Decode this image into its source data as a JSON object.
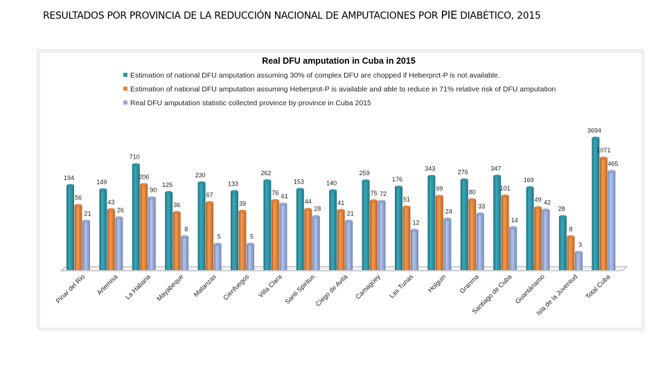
{
  "slide": {
    "title_part1": "RESULTADOS POR PROVINCIA DE LA REDUCCIÓN NACIONAL DE AMPUTACIONES POR ",
    "title_part2": "PIE",
    "title_part3": " DIABÉTICO,  2015"
  },
  "chart_data": {
    "type": "bar",
    "style": "3d-cylinder",
    "title": "Real DFU amputation in Cuba in 2015",
    "y_scale": "log",
    "y_axis_visible": false,
    "grid": false,
    "legend_placement": "top",
    "data_labels": true,
    "categories": [
      "Pinar del Rio",
      "Artemisa",
      "La Habana",
      "Mayabeque",
      "Matanzas",
      "Cienfuegos",
      "Villa Clara",
      "Santi Spiritus",
      "Ciego de Avila",
      "Camagüey",
      "Las Tunas",
      "Holguin",
      "Granma",
      "Santiago de Cuba",
      "Guantánamo",
      "Isla de la Juventud",
      "Total Cuba"
    ],
    "series": [
      {
        "name": "Estimation of national DFU amputation assuming 30% of complex DFU are chopped if Heberprct-P is not available.",
        "color": "#2E97A8",
        "values": [
          194,
          149,
          710,
          125,
          230,
          133,
          262,
          153,
          140,
          259,
          176,
          343,
          276,
          347,
          169,
          28,
          3694
        ]
      },
      {
        "name": "Estimation of national DFU amputation assuming Heberprot-P is available and able to reduce in 71% relative risk of DFU amputation",
        "color": "#E8833A",
        "values": [
          56,
          43,
          206,
          36,
          67,
          39,
          76,
          44,
          41,
          75,
          51,
          99,
          80,
          101,
          49,
          8,
          1071
        ]
      },
      {
        "name": "Real DFU amputation statistic collected province by province in Cuba 2015",
        "color": "#94A9D6",
        "values": [
          21,
          26,
          90,
          8,
          5,
          5,
          61,
          28,
          21,
          72,
          12,
          24,
          33,
          14,
          42,
          3,
          465
        ]
      }
    ]
  }
}
